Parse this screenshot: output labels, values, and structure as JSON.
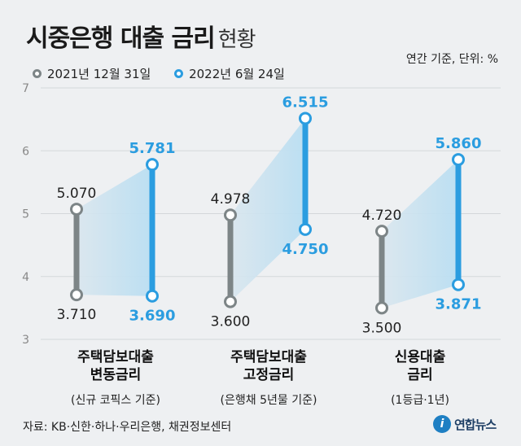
{
  "header": {
    "title": "시중은행 대출 금리",
    "subtitle": "현황",
    "unit_note": "연간 기준, 단위: %"
  },
  "legend": {
    "items": [
      {
        "label": "2021년 12월 31일",
        "color": "#7d8587"
      },
      {
        "label": "2022년 6월 24일",
        "color": "#2b9de0"
      }
    ]
  },
  "footer": {
    "source": "자료: KB·신한·하나·우리은행, 채권정보센터",
    "logo_text": "연합뉴스",
    "logo_mark": "i"
  },
  "chart_data": {
    "type": "range",
    "title": "시중은행 대출 금리 현황",
    "ylabel": "%",
    "ylim": [
      3,
      7
    ],
    "yticks": [
      3,
      4,
      5,
      6,
      7
    ],
    "categories": [
      {
        "lines": [
          "주택담보대출",
          "변동금리"
        ],
        "note": "(신규 코픽스 기준)"
      },
      {
        "lines": [
          "주택담보대출",
          "고정금리"
        ],
        "note": "(은행채 5년물 기준)"
      },
      {
        "lines": [
          "신용대출",
          "금리"
        ],
        "note": "(1등급·1년)"
      }
    ],
    "series": [
      {
        "name": "2021년 12월 31일",
        "color": "#7d8587",
        "high": [
          5.07,
          4.978,
          4.72
        ],
        "low": [
          3.71,
          3.6,
          3.5
        ],
        "high_labels": [
          "5.070",
          "4.978",
          "4.720"
        ],
        "low_labels": [
          "3.710",
          "3.600",
          "3.500"
        ]
      },
      {
        "name": "2022년 6월 24일",
        "color": "#2b9de0",
        "high": [
          5.781,
          6.515,
          5.86
        ],
        "low": [
          3.69,
          4.75,
          3.871
        ],
        "high_labels": [
          "5.781",
          "6.515",
          "5.860"
        ],
        "low_labels": [
          "3.690",
          "4.750",
          "3.871"
        ]
      }
    ]
  }
}
